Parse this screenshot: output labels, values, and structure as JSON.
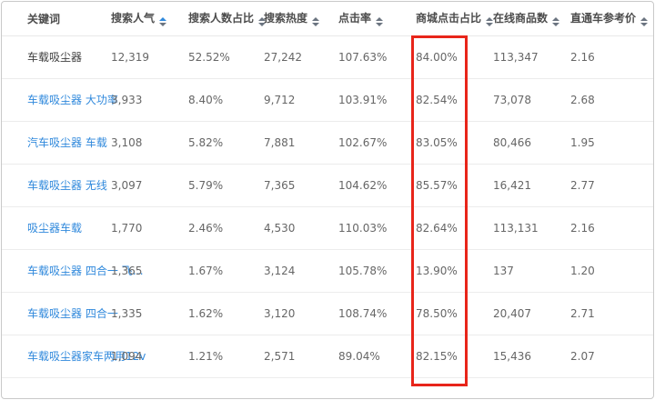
{
  "colors": {
    "highlight_border": "#e8251a",
    "keyword_link_blue": "#3089dc",
    "sort_active_blue": "#3089dc"
  },
  "table": {
    "columns": [
      {
        "label": "关键词",
        "sortable": false,
        "sort_active": false
      },
      {
        "label": "搜索人气",
        "sortable": true,
        "sort_active": true
      },
      {
        "label": "搜索人数占比",
        "sortable": true,
        "sort_active": false
      },
      {
        "label": "搜索热度",
        "sortable": true,
        "sort_active": false
      },
      {
        "label": "点击率",
        "sortable": true,
        "sort_active": false
      },
      {
        "label": "商城点击占比",
        "sortable": true,
        "sort_active": false,
        "highlighted": true
      },
      {
        "label": "在线商品数",
        "sortable": true,
        "sort_active": false
      },
      {
        "label": "直通车参考价",
        "sortable": true,
        "sort_active": false
      }
    ],
    "rows": [
      {
        "keyword": "车载吸尘器",
        "is_link": false,
        "values": [
          "12,319",
          "52.52%",
          "27,242",
          "107.63%",
          "84.00%",
          "113,347",
          "2.16"
        ]
      },
      {
        "keyword": "车载吸尘器 大功率",
        "is_link": true,
        "values": [
          "3,933",
          "8.40%",
          "9,712",
          "103.91%",
          "82.54%",
          "73,078",
          "2.68"
        ]
      },
      {
        "keyword": "汽车吸尘器 车载",
        "is_link": true,
        "values": [
          "3,108",
          "5.82%",
          "7,881",
          "102.67%",
          "83.05%",
          "80,466",
          "1.95"
        ]
      },
      {
        "keyword": "车载吸尘器 无线",
        "is_link": true,
        "values": [
          "3,097",
          "5.79%",
          "7,365",
          "104.62%",
          "85.57%",
          "16,421",
          "2.77"
        ]
      },
      {
        "keyword": "吸尘器车载",
        "is_link": true,
        "values": [
          "1,770",
          "2.46%",
          "4,530",
          "110.03%",
          "82.64%",
          "113,131",
          "2.16"
        ]
      },
      {
        "keyword": "车载吸尘器 四合一 飞…",
        "is_link": true,
        "values": [
          "1,365",
          "1.67%",
          "3,124",
          "105.78%",
          "13.90%",
          "137",
          "1.20"
        ]
      },
      {
        "keyword": "车载吸尘器 四合一",
        "is_link": true,
        "values": [
          "1,335",
          "1.62%",
          "3,120",
          "108.74%",
          "78.50%",
          "20,407",
          "2.71"
        ]
      },
      {
        "keyword": "车载吸尘器家车两用12v",
        "is_link": true,
        "values": [
          "1,094",
          "1.21%",
          "2,571",
          "89.04%",
          "82.15%",
          "15,436",
          "2.07"
        ]
      }
    ]
  },
  "highlight_box": {
    "column_label": "商城点击占比"
  }
}
